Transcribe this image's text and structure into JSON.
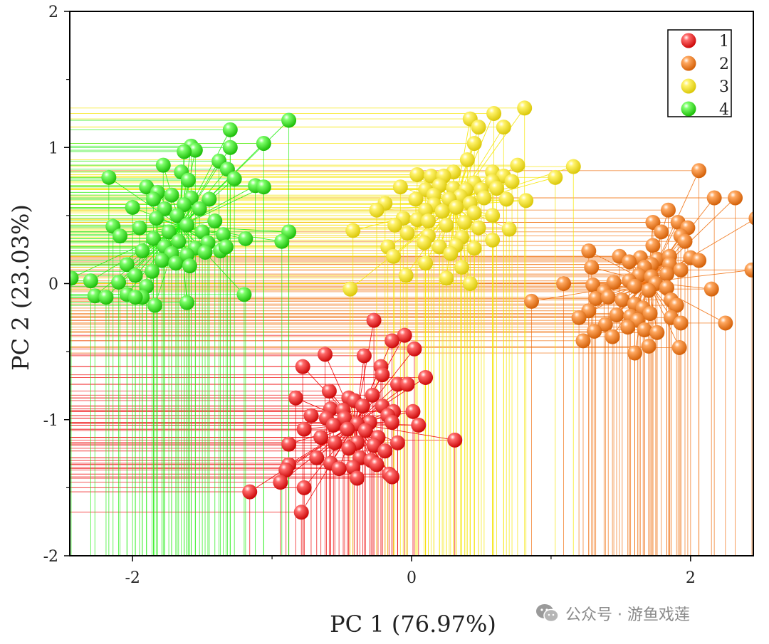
{
  "chart_data": {
    "type": "scatter",
    "title": "",
    "xlabel": "PC 1 (76.97%)",
    "ylabel": "PC 2 (23.03%)",
    "xlim": [
      -2.45,
      2.45
    ],
    "ylim": [
      -2,
      2
    ],
    "xticks": [
      -2,
      0,
      2
    ],
    "yticks": [
      2,
      1,
      0,
      -1,
      -2
    ],
    "xtick_labels": [
      "-2",
      "0",
      "2"
    ],
    "ytick_labels": [
      "2",
      "1",
      "0",
      "-1",
      "-2"
    ],
    "drop_lines_to_axes": true,
    "star_lines_to_centroid": true,
    "legend_position": "top-right",
    "series": [
      {
        "name": "1",
        "color": "#ee0000",
        "points": [
          [
            -0.27,
            -0.27
          ],
          [
            -0.05,
            -0.38
          ],
          [
            -0.14,
            -0.42
          ],
          [
            -0.62,
            -0.52
          ],
          [
            -0.34,
            -0.53
          ],
          [
            0.02,
            -0.48
          ],
          [
            -0.78,
            -0.61
          ],
          [
            -0.22,
            -0.61
          ],
          [
            -0.21,
            -0.67
          ],
          [
            -0.1,
            -0.74
          ],
          [
            -0.03,
            -0.74
          ],
          [
            0.1,
            -0.69
          ],
          [
            -0.59,
            -0.79
          ],
          [
            -0.83,
            -0.84
          ],
          [
            -0.45,
            -0.84
          ],
          [
            -0.28,
            -0.82
          ],
          [
            -0.41,
            -0.86
          ],
          [
            -0.35,
            -0.9
          ],
          [
            -0.58,
            -0.92
          ],
          [
            -0.49,
            -0.93
          ],
          [
            -0.21,
            -0.9
          ],
          [
            -0.13,
            -0.94
          ],
          [
            -0.72,
            -0.97
          ],
          [
            -0.61,
            -0.99
          ],
          [
            -0.48,
            -0.99
          ],
          [
            0.01,
            -0.94
          ],
          [
            -0.17,
            -0.97
          ],
          [
            -0.3,
            -1.02
          ],
          [
            -0.39,
            -1.03
          ],
          [
            -0.56,
            -1.04
          ],
          [
            -0.46,
            -1.07
          ],
          [
            -0.77,
            -1.07
          ],
          [
            -0.33,
            -1.08
          ],
          [
            -0.14,
            -1.02
          ],
          [
            0.05,
            -1.04
          ],
          [
            -0.65,
            -1.13
          ],
          [
            -0.55,
            -1.17
          ],
          [
            -0.39,
            -1.17
          ],
          [
            -0.24,
            -1.13
          ],
          [
            -0.1,
            -1.17
          ],
          [
            -0.88,
            -1.18
          ],
          [
            -0.45,
            -1.21
          ],
          [
            -0.27,
            -1.19
          ],
          [
            -0.19,
            -1.23
          ],
          [
            -0.68,
            -1.28
          ],
          [
            -0.37,
            -1.28
          ],
          [
            -0.29,
            -1.3
          ],
          [
            -0.58,
            -1.32
          ],
          [
            -0.88,
            -1.33
          ],
          [
            -0.42,
            -1.35
          ],
          [
            -0.25,
            -1.33
          ],
          [
            -0.9,
            -1.37
          ],
          [
            -0.52,
            -1.36
          ],
          [
            0.31,
            -1.15
          ],
          [
            -0.16,
            -1.4
          ],
          [
            -0.39,
            -1.43
          ],
          [
            -0.14,
            -1.42
          ],
          [
            -0.94,
            -1.46
          ],
          [
            -0.77,
            -1.5
          ],
          [
            -1.16,
            -1.53
          ],
          [
            -0.79,
            -1.68
          ]
        ]
      },
      {
        "name": "2",
        "color": "#f07010",
        "points": [
          [
            2.06,
            0.83
          ],
          [
            2.17,
            0.63
          ],
          [
            2.32,
            0.63
          ],
          [
            2.47,
            0.48
          ],
          [
            1.84,
            0.54
          ],
          [
            1.73,
            0.45
          ],
          [
            1.91,
            0.45
          ],
          [
            1.98,
            0.41
          ],
          [
            1.79,
            0.38
          ],
          [
            1.93,
            0.35
          ],
          [
            1.96,
            0.31
          ],
          [
            1.73,
            0.28
          ],
          [
            1.27,
            0.24
          ],
          [
            1.49,
            0.2
          ],
          [
            1.64,
            0.19
          ],
          [
            1.76,
            0.18
          ],
          [
            1.85,
            0.2
          ],
          [
            2.0,
            0.19
          ],
          [
            2.06,
            0.17
          ],
          [
            1.56,
            0.16
          ],
          [
            1.72,
            0.14
          ],
          [
            1.85,
            0.14
          ],
          [
            1.67,
            0.12
          ],
          [
            1.29,
            0.12
          ],
          [
            1.93,
            0.1
          ],
          [
            1.83,
            0.07
          ],
          [
            1.63,
            0.06
          ],
          [
            1.72,
            0.05
          ],
          [
            1.56,
            0.02
          ],
          [
            1.45,
            0.01
          ],
          [
            1.09,
            0.0
          ],
          [
            1.75,
            0.0
          ],
          [
            2.44,
            0.1
          ],
          [
            1.3,
            -0.01
          ],
          [
            1.6,
            -0.02
          ],
          [
            1.7,
            -0.05
          ],
          [
            1.38,
            -0.06
          ],
          [
            1.83,
            -0.03
          ],
          [
            2.15,
            -0.04
          ],
          [
            1.32,
            -0.11
          ],
          [
            1.41,
            -0.1
          ],
          [
            1.51,
            -0.12
          ],
          [
            1.6,
            -0.15
          ],
          [
            1.86,
            -0.12
          ],
          [
            1.66,
            -0.18
          ],
          [
            1.27,
            -0.2
          ],
          [
            1.47,
            -0.23
          ],
          [
            1.57,
            -0.24
          ],
          [
            1.71,
            -0.22
          ],
          [
            1.9,
            -0.16
          ],
          [
            1.2,
            -0.25
          ],
          [
            1.62,
            -0.27
          ],
          [
            1.86,
            -0.25
          ],
          [
            1.39,
            -0.3
          ],
          [
            1.55,
            -0.32
          ],
          [
            1.67,
            -0.34
          ],
          [
            1.93,
            -0.29
          ],
          [
            2.25,
            -0.29
          ],
          [
            1.31,
            -0.35
          ],
          [
            1.44,
            -0.39
          ],
          [
            1.76,
            -0.36
          ],
          [
            1.23,
            -0.42
          ],
          [
            1.7,
            -0.46
          ],
          [
            1.92,
            -0.47
          ],
          [
            1.6,
            -0.51
          ],
          [
            0.86,
            -0.13
          ]
        ]
      },
      {
        "name": "3",
        "color": "#f5e600",
        "points": [
          [
            0.81,
            1.29
          ],
          [
            0.42,
            1.21
          ],
          [
            0.59,
            1.25
          ],
          [
            0.48,
            1.15
          ],
          [
            0.66,
            1.15
          ],
          [
            0.45,
            1.03
          ],
          [
            0.4,
            0.91
          ],
          [
            0.76,
            0.87
          ],
          [
            0.58,
            0.82
          ],
          [
            0.04,
            0.8
          ],
          [
            0.3,
            0.82
          ],
          [
            0.14,
            0.79
          ],
          [
            0.23,
            0.79
          ],
          [
            1.16,
            0.86
          ],
          [
            1.03,
            0.78
          ],
          [
            0.66,
            0.79
          ],
          [
            0.72,
            0.75
          ],
          [
            0.45,
            0.74
          ],
          [
            0.58,
            0.75
          ],
          [
            0.2,
            0.72
          ],
          [
            0.3,
            0.7
          ],
          [
            0.39,
            0.69
          ],
          [
            0.5,
            0.69
          ],
          [
            0.61,
            0.7
          ],
          [
            0.1,
            0.69
          ],
          [
            -0.08,
            0.71
          ],
          [
            0.16,
            0.65
          ],
          [
            0.35,
            0.64
          ],
          [
            0.52,
            0.63
          ],
          [
            0.68,
            0.62
          ],
          [
            0.03,
            0.62
          ],
          [
            0.27,
            0.62
          ],
          [
            0.42,
            0.59
          ],
          [
            -0.19,
            0.59
          ],
          [
            0.16,
            0.58
          ],
          [
            0.32,
            0.56
          ],
          [
            0.82,
            0.61
          ],
          [
            -0.25,
            0.54
          ],
          [
            0.1,
            0.54
          ],
          [
            0.22,
            0.53
          ],
          [
            0.45,
            0.52
          ],
          [
            0.58,
            0.5
          ],
          [
            -0.06,
            0.48
          ],
          [
            0.04,
            0.47
          ],
          [
            0.12,
            0.46
          ],
          [
            0.38,
            0.45
          ],
          [
            -0.12,
            0.43
          ],
          [
            0.25,
            0.43
          ],
          [
            0.48,
            0.41
          ],
          [
            0.7,
            0.4
          ],
          [
            -0.42,
            0.39
          ],
          [
            -0.03,
            0.37
          ],
          [
            0.12,
            0.35
          ],
          [
            0.36,
            0.34
          ],
          [
            0.58,
            0.32
          ],
          [
            0.09,
            0.3
          ],
          [
            0.32,
            0.28
          ],
          [
            -0.17,
            0.27
          ],
          [
            0.2,
            0.27
          ],
          [
            0.45,
            0.26
          ],
          [
            -0.13,
            0.2
          ],
          [
            0.1,
            0.15
          ],
          [
            0.28,
            0.22
          ],
          [
            0.36,
            0.12
          ],
          [
            -0.04,
            0.06
          ],
          [
            0.25,
            0.04
          ],
          [
            0.42,
            0.0
          ],
          [
            -0.44,
            -0.04
          ]
        ]
      },
      {
        "name": "4",
        "color": "#22ee11",
        "points": [
          [
            -0.88,
            1.2
          ],
          [
            -1.06,
            1.03
          ],
          [
            -1.3,
            1.13
          ],
          [
            -1.3,
            1.0
          ],
          [
            -1.58,
            1.01
          ],
          [
            -1.55,
            0.98
          ],
          [
            -1.38,
            0.9
          ],
          [
            -1.63,
            0.97
          ],
          [
            -1.32,
            0.84
          ],
          [
            -1.78,
            0.87
          ],
          [
            -1.65,
            0.82
          ],
          [
            -1.6,
            0.76
          ],
          [
            -1.27,
            0.77
          ],
          [
            -1.12,
            0.72
          ],
          [
            -1.06,
            0.71
          ],
          [
            -2.17,
            0.78
          ],
          [
            -1.9,
            0.71
          ],
          [
            -1.82,
            0.67
          ],
          [
            -1.72,
            0.65
          ],
          [
            -1.85,
            0.62
          ],
          [
            -1.58,
            0.63
          ],
          [
            -1.45,
            0.62
          ],
          [
            -1.63,
            0.58
          ],
          [
            -2.0,
            0.56
          ],
          [
            -1.77,
            0.55
          ],
          [
            -1.52,
            0.55
          ],
          [
            -1.68,
            0.5
          ],
          [
            -1.83,
            0.48
          ],
          [
            -1.41,
            0.46
          ],
          [
            -1.61,
            0.43
          ],
          [
            -2.14,
            0.42
          ],
          [
            -1.95,
            0.41
          ],
          [
            -1.74,
            0.38
          ],
          [
            -1.5,
            0.38
          ],
          [
            -1.35,
            0.36
          ],
          [
            -0.88,
            0.38
          ],
          [
            -2.09,
            0.35
          ],
          [
            -1.85,
            0.33
          ],
          [
            -1.67,
            0.31
          ],
          [
            -1.46,
            0.3
          ],
          [
            -1.19,
            0.33
          ],
          [
            -1.77,
            0.27
          ],
          [
            -1.55,
            0.26
          ],
          [
            -1.37,
            0.24
          ],
          [
            -1.93,
            0.24
          ],
          [
            -1.72,
            0.22
          ],
          [
            -0.93,
            0.31
          ],
          [
            -1.61,
            0.21
          ],
          [
            -1.48,
            0.23
          ],
          [
            -1.79,
            0.17
          ],
          [
            -1.69,
            0.15
          ],
          [
            -1.33,
            0.27
          ],
          [
            -2.04,
            0.14
          ],
          [
            -1.59,
            0.13
          ],
          [
            -1.86,
            0.09
          ],
          [
            -1.98,
            0.06
          ],
          [
            -2.3,
            0.02
          ],
          [
            -2.44,
            0.04
          ],
          [
            -2.1,
            0.01
          ],
          [
            -1.9,
            -0.02
          ],
          [
            -2.27,
            -0.09
          ],
          [
            -2.04,
            -0.08
          ],
          [
            -1.93,
            -0.1
          ],
          [
            -1.2,
            -0.08
          ],
          [
            -2.19,
            -0.1
          ],
          [
            -1.84,
            -0.16
          ],
          [
            -1.61,
            -0.14
          ],
          [
            -1.98,
            -0.1
          ]
        ]
      }
    ]
  },
  "watermark": {
    "text": "公众号 · 游鱼戏莲"
  }
}
